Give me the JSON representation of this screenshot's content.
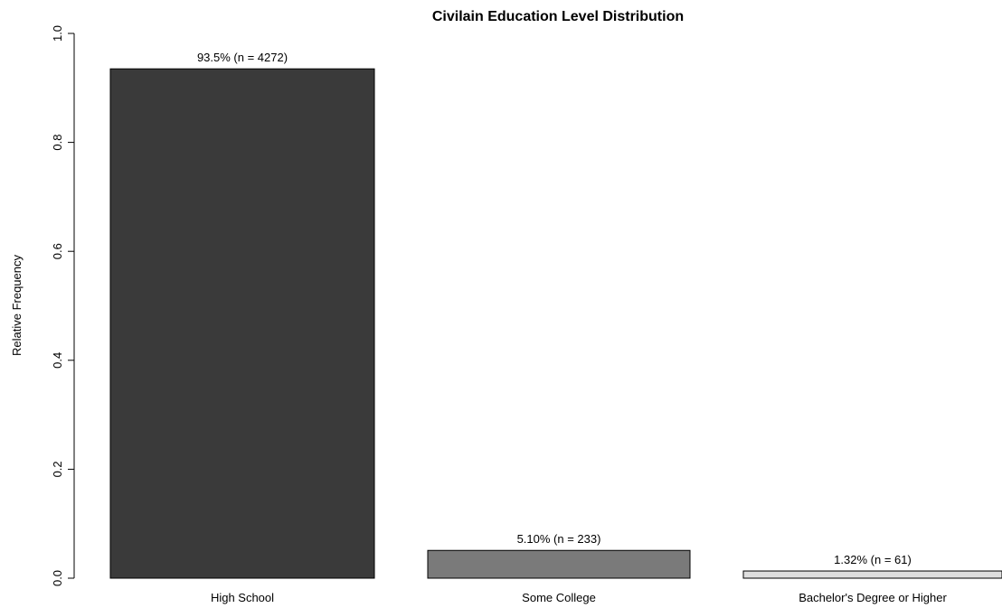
{
  "chart_data": {
    "type": "bar",
    "title": "Civilain Education Level Distribution",
    "xlabel": "",
    "ylabel": "Relative Frequency",
    "ylim": [
      0,
      1
    ],
    "yticks": [
      "0.0",
      "0.2",
      "0.4",
      "0.6",
      "0.8",
      "1.0"
    ],
    "categories": [
      "High School",
      "Some College",
      "Bachelor's Degree or Higher"
    ],
    "values": [
      0.935,
      0.051,
      0.0132
    ],
    "counts": [
      4272,
      233,
      61
    ],
    "data_labels": [
      "93.5% (n = 4272)",
      "5.10% (n = 233)",
      "1.32% (n = 61)"
    ],
    "colors": [
      "#3a3a3a",
      "#7a7a7a",
      "#dedede"
    ],
    "grid": false,
    "legend": "none"
  }
}
